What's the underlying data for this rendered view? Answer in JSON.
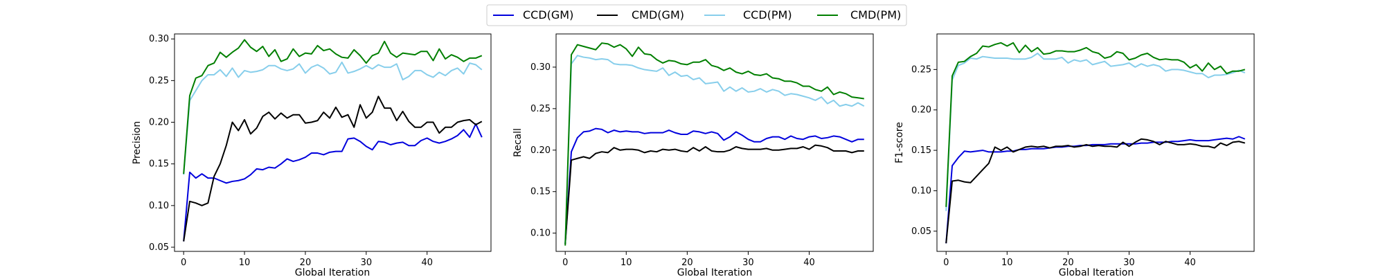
{
  "legend": {
    "placement": "top-center",
    "entries": [
      {
        "label": "CCD(GM)",
        "color": "#0000dd"
      },
      {
        "label": "CMD(GM)",
        "color": "#000000"
      },
      {
        "label": "CCD(PM)",
        "color": "#87ceeb"
      },
      {
        "label": "CMD(PM)",
        "color": "#007f00"
      }
    ]
  },
  "chart_data": [
    {
      "type": "line",
      "xlabel": "Global Iteration",
      "ylabel": "Precision",
      "xlim": [
        -1.5,
        50.5
      ],
      "ylim": [
        0.045,
        0.306
      ],
      "xticks": [
        0,
        10,
        20,
        30,
        40
      ],
      "yticks": [
        0.05,
        0.1,
        0.15,
        0.2,
        0.25,
        0.3
      ],
      "grid": false,
      "series": [
        {
          "name": "CCD(GM)",
          "color": "#0000dd",
          "values": [
            0.057,
            0.14,
            0.133,
            0.138,
            0.133,
            0.133,
            0.13,
            0.127,
            0.129,
            0.13,
            0.132,
            0.137,
            0.144,
            0.143,
            0.146,
            0.145,
            0.15,
            0.156,
            0.153,
            0.155,
            0.158,
            0.163,
            0.163,
            0.161,
            0.164,
            0.165,
            0.165,
            0.18,
            0.181,
            0.177,
            0.171,
            0.167,
            0.177,
            0.176,
            0.173,
            0.175,
            0.176,
            0.172,
            0.172,
            0.178,
            0.181,
            0.177,
            0.175,
            0.177,
            0.18,
            0.184,
            0.191,
            0.182,
            0.198,
            0.182
          ]
        },
        {
          "name": "CMD(GM)",
          "color": "#000000",
          "values": [
            0.057,
            0.105,
            0.103,
            0.1,
            0.103,
            0.135,
            0.15,
            0.172,
            0.2,
            0.19,
            0.203,
            0.186,
            0.193,
            0.207,
            0.212,
            0.204,
            0.211,
            0.205,
            0.209,
            0.209,
            0.199,
            0.2,
            0.202,
            0.212,
            0.205,
            0.218,
            0.206,
            0.209,
            0.194,
            0.221,
            0.205,
            0.212,
            0.231,
            0.217,
            0.217,
            0.202,
            0.213,
            0.201,
            0.194,
            0.194,
            0.2,
            0.2,
            0.187,
            0.194,
            0.194,
            0.2,
            0.202,
            0.203,
            0.197,
            0.201
          ]
        },
        {
          "name": "CCD(PM)",
          "color": "#87ceeb",
          "values": [
            0.137,
            0.226,
            0.238,
            0.25,
            0.257,
            0.257,
            0.263,
            0.255,
            0.265,
            0.254,
            0.262,
            0.26,
            0.261,
            0.263,
            0.268,
            0.268,
            0.264,
            0.262,
            0.264,
            0.27,
            0.259,
            0.266,
            0.269,
            0.265,
            0.258,
            0.26,
            0.272,
            0.259,
            0.261,
            0.264,
            0.268,
            0.264,
            0.269,
            0.266,
            0.266,
            0.27,
            0.251,
            0.255,
            0.262,
            0.262,
            0.257,
            0.254,
            0.26,
            0.256,
            0.262,
            0.265,
            0.258,
            0.271,
            0.269,
            0.263
          ]
        },
        {
          "name": "CMD(PM)",
          "color": "#007f00",
          "values": [
            0.138,
            0.232,
            0.253,
            0.256,
            0.268,
            0.271,
            0.284,
            0.278,
            0.284,
            0.289,
            0.299,
            0.29,
            0.285,
            0.291,
            0.279,
            0.287,
            0.273,
            0.276,
            0.288,
            0.279,
            0.283,
            0.282,
            0.292,
            0.286,
            0.288,
            0.282,
            0.278,
            0.277,
            0.287,
            0.28,
            0.271,
            0.28,
            0.283,
            0.297,
            0.283,
            0.278,
            0.283,
            0.282,
            0.281,
            0.285,
            0.285,
            0.274,
            0.288,
            0.276,
            0.281,
            0.278,
            0.273,
            0.277,
            0.277,
            0.28
          ]
        }
      ]
    },
    {
      "type": "line",
      "xlabel": "Global Iteration",
      "ylabel": "Recall",
      "xlim": [
        -1.5,
        50.5
      ],
      "ylim": [
        0.078,
        0.34
      ],
      "xticks": [
        0,
        10,
        20,
        30,
        40
      ],
      "yticks": [
        0.1,
        0.15,
        0.2,
        0.25,
        0.3
      ],
      "grid": false,
      "series": [
        {
          "name": "CCD(GM)",
          "color": "#0000dd",
          "values": [
            0.087,
            0.198,
            0.215,
            0.222,
            0.223,
            0.226,
            0.225,
            0.221,
            0.224,
            0.222,
            0.223,
            0.222,
            0.222,
            0.22,
            0.221,
            0.221,
            0.221,
            0.224,
            0.221,
            0.219,
            0.219,
            0.223,
            0.222,
            0.22,
            0.222,
            0.22,
            0.212,
            0.216,
            0.222,
            0.218,
            0.213,
            0.21,
            0.21,
            0.214,
            0.216,
            0.216,
            0.213,
            0.217,
            0.214,
            0.213,
            0.216,
            0.217,
            0.214,
            0.215,
            0.217,
            0.216,
            0.213,
            0.21,
            0.213,
            0.213
          ]
        },
        {
          "name": "CMD(GM)",
          "color": "#000000",
          "values": [
            0.087,
            0.188,
            0.19,
            0.192,
            0.19,
            0.196,
            0.198,
            0.197,
            0.203,
            0.2,
            0.201,
            0.201,
            0.2,
            0.197,
            0.199,
            0.198,
            0.201,
            0.2,
            0.201,
            0.199,
            0.198,
            0.203,
            0.199,
            0.204,
            0.199,
            0.198,
            0.198,
            0.2,
            0.204,
            0.202,
            0.201,
            0.201,
            0.201,
            0.202,
            0.2,
            0.2,
            0.201,
            0.202,
            0.202,
            0.204,
            0.201,
            0.206,
            0.205,
            0.203,
            0.199,
            0.199,
            0.199,
            0.197,
            0.199,
            0.199
          ]
        },
        {
          "name": "CCD(PM)",
          "color": "#87ceeb",
          "values": [
            0.088,
            0.304,
            0.314,
            0.312,
            0.311,
            0.309,
            0.31,
            0.309,
            0.304,
            0.303,
            0.303,
            0.302,
            0.299,
            0.297,
            0.296,
            0.295,
            0.299,
            0.29,
            0.294,
            0.289,
            0.29,
            0.285,
            0.287,
            0.28,
            0.281,
            0.282,
            0.271,
            0.276,
            0.271,
            0.275,
            0.27,
            0.271,
            0.274,
            0.27,
            0.273,
            0.271,
            0.266,
            0.268,
            0.267,
            0.265,
            0.263,
            0.26,
            0.264,
            0.256,
            0.26,
            0.253,
            0.255,
            0.253,
            0.257,
            0.253
          ]
        },
        {
          "name": "CMD(PM)",
          "color": "#007f00",
          "values": [
            0.085,
            0.315,
            0.327,
            0.325,
            0.323,
            0.321,
            0.329,
            0.328,
            0.324,
            0.327,
            0.322,
            0.313,
            0.324,
            0.316,
            0.315,
            0.309,
            0.305,
            0.308,
            0.307,
            0.304,
            0.303,
            0.306,
            0.306,
            0.309,
            0.302,
            0.3,
            0.296,
            0.299,
            0.294,
            0.292,
            0.295,
            0.291,
            0.29,
            0.292,
            0.287,
            0.286,
            0.283,
            0.283,
            0.281,
            0.277,
            0.277,
            0.273,
            0.271,
            0.276,
            0.267,
            0.27,
            0.268,
            0.264,
            0.263,
            0.262
          ]
        }
      ]
    },
    {
      "type": "line",
      "xlabel": "Global Iteration",
      "ylabel": "F1-score",
      "xlim": [
        -1.5,
        50.5
      ],
      "ylim": [
        0.025,
        0.294
      ],
      "xticks": [
        0,
        10,
        20,
        30,
        40
      ],
      "yticks": [
        0.05,
        0.1,
        0.15,
        0.2,
        0.25
      ],
      "grid": false,
      "series": [
        {
          "name": "CCD(GM)",
          "color": "#0000dd",
          "values": [
            0.035,
            0.131,
            0.141,
            0.149,
            0.148,
            0.149,
            0.15,
            0.148,
            0.148,
            0.148,
            0.149,
            0.149,
            0.151,
            0.151,
            0.152,
            0.152,
            0.152,
            0.153,
            0.154,
            0.154,
            0.155,
            0.155,
            0.156,
            0.156,
            0.157,
            0.157,
            0.157,
            0.158,
            0.158,
            0.158,
            0.158,
            0.158,
            0.159,
            0.159,
            0.16,
            0.16,
            0.16,
            0.161,
            0.161,
            0.162,
            0.163,
            0.162,
            0.162,
            0.162,
            0.163,
            0.164,
            0.165,
            0.164,
            0.167,
            0.164
          ]
        },
        {
          "name": "CMD(GM)",
          "color": "#000000",
          "values": [
            0.035,
            0.112,
            0.113,
            0.111,
            0.11,
            0.118,
            0.126,
            0.134,
            0.154,
            0.15,
            0.154,
            0.148,
            0.151,
            0.154,
            0.155,
            0.154,
            0.155,
            0.153,
            0.155,
            0.155,
            0.156,
            0.154,
            0.155,
            0.157,
            0.155,
            0.156,
            0.155,
            0.155,
            0.154,
            0.16,
            0.155,
            0.16,
            0.164,
            0.163,
            0.161,
            0.157,
            0.161,
            0.159,
            0.157,
            0.157,
            0.158,
            0.157,
            0.155,
            0.155,
            0.153,
            0.159,
            0.156,
            0.16,
            0.161,
            0.159
          ]
        },
        {
          "name": "CCD(PM)",
          "color": "#87ceeb",
          "values": [
            0.075,
            0.237,
            0.255,
            0.258,
            0.264,
            0.263,
            0.266,
            0.265,
            0.264,
            0.264,
            0.264,
            0.263,
            0.263,
            0.263,
            0.265,
            0.27,
            0.263,
            0.263,
            0.263,
            0.265,
            0.258,
            0.262,
            0.26,
            0.262,
            0.256,
            0.258,
            0.26,
            0.254,
            0.255,
            0.256,
            0.258,
            0.253,
            0.257,
            0.254,
            0.256,
            0.254,
            0.248,
            0.25,
            0.25,
            0.249,
            0.247,
            0.245,
            0.245,
            0.24,
            0.243,
            0.243,
            0.244,
            0.246,
            0.249,
            0.246
          ]
        },
        {
          "name": "CMD(PM)",
          "color": "#007f00",
          "values": [
            0.08,
            0.242,
            0.259,
            0.26,
            0.266,
            0.27,
            0.279,
            0.278,
            0.281,
            0.283,
            0.279,
            0.283,
            0.271,
            0.28,
            0.272,
            0.277,
            0.269,
            0.27,
            0.273,
            0.273,
            0.272,
            0.272,
            0.274,
            0.277,
            0.272,
            0.27,
            0.264,
            0.266,
            0.272,
            0.27,
            0.262,
            0.264,
            0.268,
            0.27,
            0.265,
            0.262,
            0.263,
            0.262,
            0.262,
            0.259,
            0.252,
            0.256,
            0.248,
            0.258,
            0.25,
            0.254,
            0.245,
            0.248,
            0.248,
            0.25
          ]
        }
      ]
    }
  ]
}
